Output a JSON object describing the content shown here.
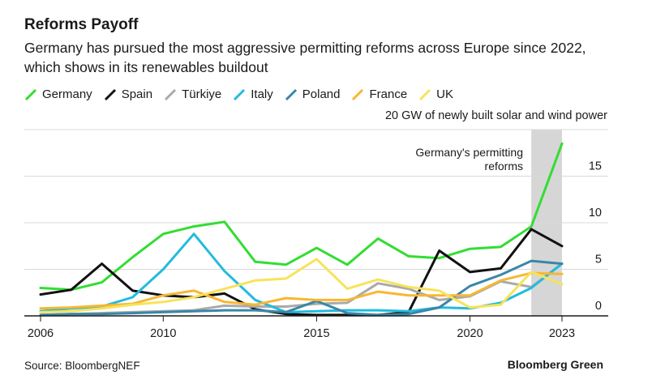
{
  "title": "Reforms Payoff",
  "subtitle": "Germany has pursued the most aggressive permitting reforms across Europe since 2022, which shows in its renewables buildout",
  "source": "Source: BloombergNEF",
  "brand": "Bloomberg Green",
  "unit_label": "20 GW of newly built solar and wind power",
  "annotation": "Germany's permitting reforms",
  "colors": {
    "Germany": "#33dd33",
    "Spain": "#111111",
    "Türkiye": "#aaaaaa",
    "Italy": "#22bbdd",
    "Poland": "#3a86a8",
    "France": "#f7b733",
    "UK": "#f7e35a",
    "grid": "#d9d9d9",
    "highlight_band": "#d6d6d6"
  },
  "chart_data": {
    "type": "line",
    "x": [
      2006,
      2007,
      2008,
      2009,
      2010,
      2011,
      2012,
      2013,
      2014,
      2015,
      2016,
      2017,
      2018,
      2019,
      2020,
      2021,
      2022,
      2023
    ],
    "xticks": [
      "2006",
      "2010",
      "2015",
      "2020",
      "2023"
    ],
    "ylim": [
      0,
      20
    ],
    "yticks": [
      "0",
      "5",
      "10",
      "15"
    ],
    "highlight_x": [
      2022,
      2023
    ],
    "series": [
      {
        "name": "Germany",
        "values": [
          3.0,
          2.8,
          3.6,
          6.3,
          8.8,
          9.6,
          10.1,
          5.8,
          5.5,
          7.3,
          5.5,
          8.3,
          6.4,
          6.2,
          7.2,
          7.4,
          9.6,
          18.5
        ]
      },
      {
        "name": "Spain",
        "values": [
          2.3,
          2.8,
          5.6,
          2.7,
          2.2,
          2.0,
          2.4,
          0.7,
          0.2,
          0.1,
          0.1,
          0.1,
          0.4,
          7.0,
          4.7,
          5.1,
          9.3,
          7.5
        ]
      },
      {
        "name": "Türkiye",
        "values": [
          0.1,
          0.2,
          0.3,
          0.4,
          0.5,
          0.6,
          1.1,
          1.0,
          1.0,
          1.3,
          1.4,
          3.5,
          2.9,
          1.7,
          2.1,
          3.7,
          3.1,
          5.6
        ]
      },
      {
        "name": "Italy",
        "values": [
          0.5,
          0.8,
          1.0,
          2.0,
          5.0,
          8.8,
          4.8,
          1.7,
          0.4,
          0.5,
          0.6,
          0.6,
          0.5,
          0.9,
          0.8,
          1.4,
          3.0,
          5.6
        ]
      },
      {
        "name": "Poland",
        "values": [
          0.1,
          0.2,
          0.2,
          0.3,
          0.4,
          0.5,
          0.6,
          0.6,
          0.4,
          1.6,
          0.3,
          0.1,
          0.2,
          0.9,
          3.2,
          4.4,
          5.9,
          5.6
        ]
      },
      {
        "name": "France",
        "values": [
          0.8,
          0.9,
          1.1,
          1.3,
          2.2,
          2.7,
          1.5,
          1.2,
          1.9,
          1.7,
          1.7,
          2.6,
          2.2,
          2.2,
          2.2,
          3.8,
          4.6,
          4.5
        ]
      },
      {
        "name": "UK",
        "values": [
          0.4,
          0.5,
          0.8,
          1.2,
          1.5,
          2.0,
          2.9,
          3.8,
          4.0,
          6.1,
          2.9,
          3.9,
          3.1,
          2.7,
          0.9,
          1.2,
          4.7,
          3.4
        ]
      }
    ]
  }
}
